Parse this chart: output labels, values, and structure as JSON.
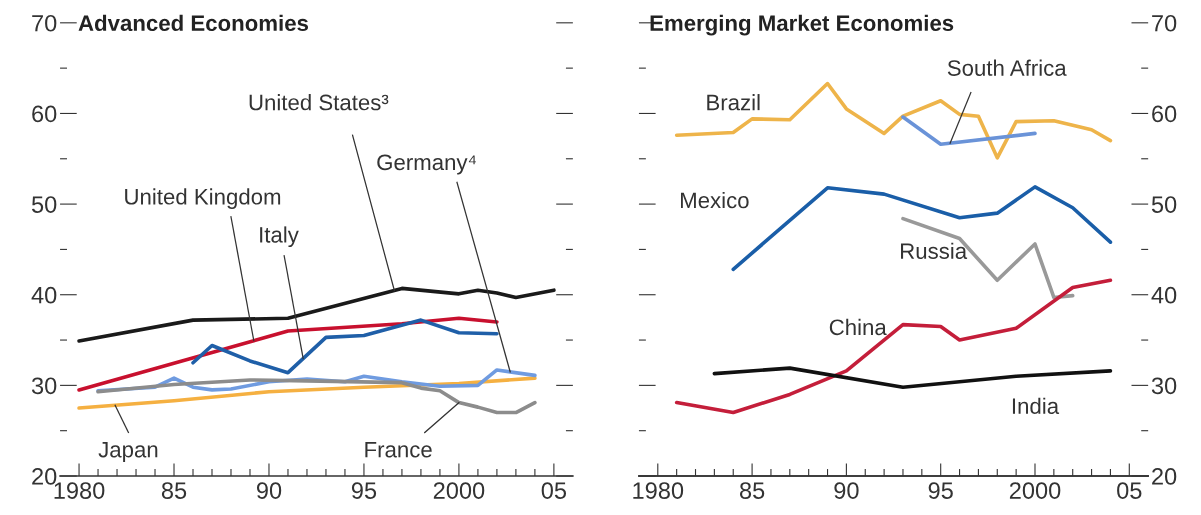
{
  "chart_data": [
    {
      "type": "line",
      "title": "Advanced Economies",
      "xlim": [
        1979,
        2006
      ],
      "ylim": [
        20,
        70
      ],
      "xticks": [
        {
          "value": 1980,
          "label": "1980"
        },
        {
          "value": 1981,
          "label": null
        },
        {
          "value": 1982,
          "label": null
        },
        {
          "value": 1983,
          "label": null
        },
        {
          "value": 1984,
          "label": null
        },
        {
          "value": 1985,
          "label": "85"
        },
        {
          "value": 1986,
          "label": null
        },
        {
          "value": 1987,
          "label": null
        },
        {
          "value": 1988,
          "label": null
        },
        {
          "value": 1989,
          "label": null
        },
        {
          "value": 1990,
          "label": "90"
        },
        {
          "value": 1991,
          "label": null
        },
        {
          "value": 1992,
          "label": null
        },
        {
          "value": 1993,
          "label": null
        },
        {
          "value": 1994,
          "label": null
        },
        {
          "value": 1995,
          "label": "95"
        },
        {
          "value": 1996,
          "label": null
        },
        {
          "value": 1997,
          "label": null
        },
        {
          "value": 1998,
          "label": null
        },
        {
          "value": 1999,
          "label": null
        },
        {
          "value": 2000,
          "label": "2000"
        },
        {
          "value": 2001,
          "label": null
        },
        {
          "value": 2002,
          "label": null
        },
        {
          "value": 2003,
          "label": null
        },
        {
          "value": 2004,
          "label": null
        },
        {
          "value": 2005,
          "label": "05"
        }
      ],
      "yticks": [
        20,
        {
          "value": 25,
          "label": null
        },
        30,
        {
          "value": 35,
          "label": null
        },
        40,
        {
          "value": 45,
          "label": null
        },
        50,
        {
          "value": 55,
          "label": null
        },
        60,
        {
          "value": 65,
          "label": null
        },
        70
      ],
      "grid": false,
      "legend": false,
      "series": [
        {
          "name": "United States³",
          "color": "#1a1a1a",
          "x": [
            1980,
            1986,
            1991,
            1997,
            2000,
            2001,
            2002,
            2003,
            2005
          ],
          "values": [
            34.9,
            37.2,
            37.4,
            40.7,
            40.1,
            40.5,
            40.2,
            39.7,
            40.5
          ]
        },
        {
          "name": "United Kingdom",
          "color": "#c8102e",
          "x": [
            1980,
            1991,
            1997,
            2000,
            2002
          ],
          "values": [
            29.5,
            36.0,
            36.8,
            37.4,
            37.0
          ]
        },
        {
          "name": "Italy",
          "color": "#1f5fa8",
          "x": [
            1986,
            1987,
            1989,
            1991,
            1993,
            1995,
            1998,
            2000,
            2002
          ],
          "values": [
            32.5,
            34.4,
            32.7,
            31.4,
            35.3,
            35.5,
            37.2,
            35.8,
            35.7
          ]
        },
        {
          "name": "Japan",
          "color": "#f5b041",
          "x": [
            1980,
            1985,
            1990,
            1995,
            2000,
            2004
          ],
          "values": [
            27.5,
            28.3,
            29.3,
            29.8,
            30.2,
            30.8
          ]
        },
        {
          "name": "Germany⁴",
          "color": "#6f9be0",
          "x": [
            1981,
            1984,
            1985,
            1986,
            1987,
            1988,
            1990,
            1992,
            1994,
            1995,
            1997,
            1999,
            2001,
            2002,
            2004
          ],
          "values": [
            29.4,
            29.8,
            30.8,
            29.8,
            29.5,
            29.6,
            30.4,
            30.7,
            30.4,
            31.0,
            30.4,
            29.9,
            30.0,
            31.7,
            31.1
          ]
        },
        {
          "name": "France",
          "color": "#8c8c8c",
          "x": [
            1981,
            1985,
            1989,
            1992,
            1997,
            1998,
            1999,
            2000,
            2001,
            2002,
            2003,
            2004
          ],
          "values": [
            29.3,
            30.1,
            30.6,
            30.5,
            30.3,
            29.7,
            29.4,
            28.1,
            27.6,
            27.0,
            27.0,
            28.1
          ]
        }
      ]
    },
    {
      "type": "line",
      "title": "Emerging Market Economies",
      "xlim": [
        1979,
        2006
      ],
      "y2lim": [
        20,
        70
      ],
      "xticks": [
        {
          "value": 1980,
          "label": "1980"
        },
        {
          "value": 1981,
          "label": null
        },
        {
          "value": 1982,
          "label": null
        },
        {
          "value": 1983,
          "label": null
        },
        {
          "value": 1984,
          "label": null
        },
        {
          "value": 1985,
          "label": "85"
        },
        {
          "value": 1986,
          "label": null
        },
        {
          "value": 1987,
          "label": null
        },
        {
          "value": 1988,
          "label": null
        },
        {
          "value": 1989,
          "label": null
        },
        {
          "value": 1990,
          "label": "90"
        },
        {
          "value": 1991,
          "label": null
        },
        {
          "value": 1992,
          "label": null
        },
        {
          "value": 1993,
          "label": null
        },
        {
          "value": 1994,
          "label": null
        },
        {
          "value": 1995,
          "label": "95"
        },
        {
          "value": 1996,
          "label": null
        },
        {
          "value": 1997,
          "label": null
        },
        {
          "value": 1998,
          "label": null
        },
        {
          "value": 1999,
          "label": null
        },
        {
          "value": 2000,
          "label": "2000"
        },
        {
          "value": 2001,
          "label": null
        },
        {
          "value": 2002,
          "label": null
        },
        {
          "value": 2003,
          "label": null
        },
        {
          "value": 2004,
          "label": null
        },
        {
          "value": 2005,
          "label": "05"
        }
      ],
      "y2ticks": [
        20,
        {
          "value": 25,
          "label": null
        },
        30,
        {
          "value": 35,
          "label": null
        },
        40,
        {
          "value": 45,
          "label": null
        },
        50,
        {
          "value": 55,
          "label": null
        },
        60,
        {
          "value": 65,
          "label": null
        },
        70
      ],
      "grid": false,
      "legend": false,
      "series": [
        {
          "name": "Brazil",
          "color": "#eeb44a",
          "axis": "y2",
          "x": [
            1981,
            1984,
            1985,
            1987,
            1989,
            1990,
            1992,
            1993,
            1995,
            1996,
            1997,
            1998,
            1999,
            2001,
            2003,
            2004
          ],
          "values": [
            57.6,
            57.9,
            59.4,
            59.3,
            63.3,
            60.5,
            57.8,
            59.7,
            61.4,
            59.9,
            59.7,
            55.1,
            59.1,
            59.2,
            58.2,
            57.0
          ]
        },
        {
          "name": "South Africa",
          "color": "#6a93d8",
          "axis": "y2",
          "x": [
            1993,
            1995,
            2000
          ],
          "values": [
            59.6,
            56.6,
            57.8
          ]
        },
        {
          "name": "Mexico",
          "color": "#1a5ea8",
          "axis": "y2",
          "x": [
            1984,
            1989,
            1992,
            1996,
            1998,
            2000,
            2002,
            2004
          ],
          "values": [
            42.8,
            51.8,
            51.1,
            48.5,
            49.0,
            51.9,
            49.6,
            45.8
          ]
        },
        {
          "name": "Russia",
          "color": "#999999",
          "axis": "y2",
          "x": [
            1993,
            1996,
            1998,
            2000,
            2001,
            2002
          ],
          "values": [
            48.4,
            46.2,
            41.6,
            45.6,
            39.7,
            39.9
          ]
        },
        {
          "name": "China",
          "color": "#c41e3a",
          "axis": "y2",
          "x": [
            1981,
            1984,
            1987,
            1990,
            1993,
            1995,
            1996,
            1999,
            2002,
            2004
          ],
          "values": [
            28.1,
            27.0,
            29.0,
            31.6,
            36.7,
            36.5,
            35.0,
            36.3,
            40.8,
            41.6
          ]
        },
        {
          "name": "India",
          "color": "#111111",
          "axis": "y2",
          "x": [
            1983,
            1987,
            1993,
            1999,
            2004
          ],
          "values": [
            31.3,
            31.9,
            29.8,
            31.0,
            31.6
          ]
        }
      ]
    }
  ]
}
